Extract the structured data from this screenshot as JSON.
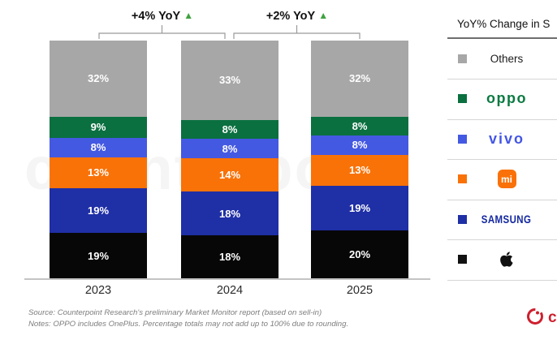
{
  "watermark": "counterpoint",
  "annotations": {
    "pairs": [
      {
        "label": "+4% YoY",
        "arrow": "▲"
      },
      {
        "label": "+2% YoY",
        "arrow": "▲"
      }
    ],
    "arrow_color": "#3fa23f"
  },
  "chart_data": {
    "type": "bar",
    "subtype": "stacked-percent",
    "categories": [
      "2023",
      "2024",
      "2025"
    ],
    "series_bottom_to_top": [
      {
        "name": "Apple",
        "color": "#070707",
        "values": [
          19,
          18,
          20
        ]
      },
      {
        "name": "Samsung",
        "color": "#1f2fa6",
        "values": [
          19,
          18,
          19
        ]
      },
      {
        "name": "Xiaomi",
        "color": "#f97208",
        "values": [
          13,
          14,
          13
        ]
      },
      {
        "name": "vivo",
        "color": "#4459e2",
        "values": [
          8,
          8,
          8
        ]
      },
      {
        "name": "OPPO",
        "color": "#0a7040",
        "values": [
          9,
          8,
          8
        ]
      },
      {
        "name": "Others",
        "color": "#a7a7a7",
        "values": [
          32,
          33,
          32
        ]
      }
    ],
    "value_suffix": "%",
    "yoy_annotations": [
      "+4% YoY",
      "+2% YoY"
    ],
    "legend_position": "right",
    "grid": false
  },
  "legend": {
    "title": "YoY% Change in S",
    "items": [
      {
        "name": "Others",
        "label": "Others",
        "swatch": "#a7a7a7"
      },
      {
        "name": "OPPO",
        "label": "oppo",
        "swatch": "#0a7040"
      },
      {
        "name": "vivo",
        "label": "vivo",
        "swatch": "#4459e2"
      },
      {
        "name": "Xiaomi",
        "label": "mi",
        "swatch": "#f97208"
      },
      {
        "name": "Samsung",
        "label": "SAMSUNG",
        "swatch": "#1f2fa6"
      },
      {
        "name": "Apple",
        "label": "",
        "swatch": "#111111"
      }
    ]
  },
  "footnotes": {
    "source": "Source: Counterpoint Research's preliminary Market Monitor report (based on sell-in)",
    "notes": "Notes: OPPO includes OnePlus. Percentage totals may not add up to 100% due to rounding."
  }
}
